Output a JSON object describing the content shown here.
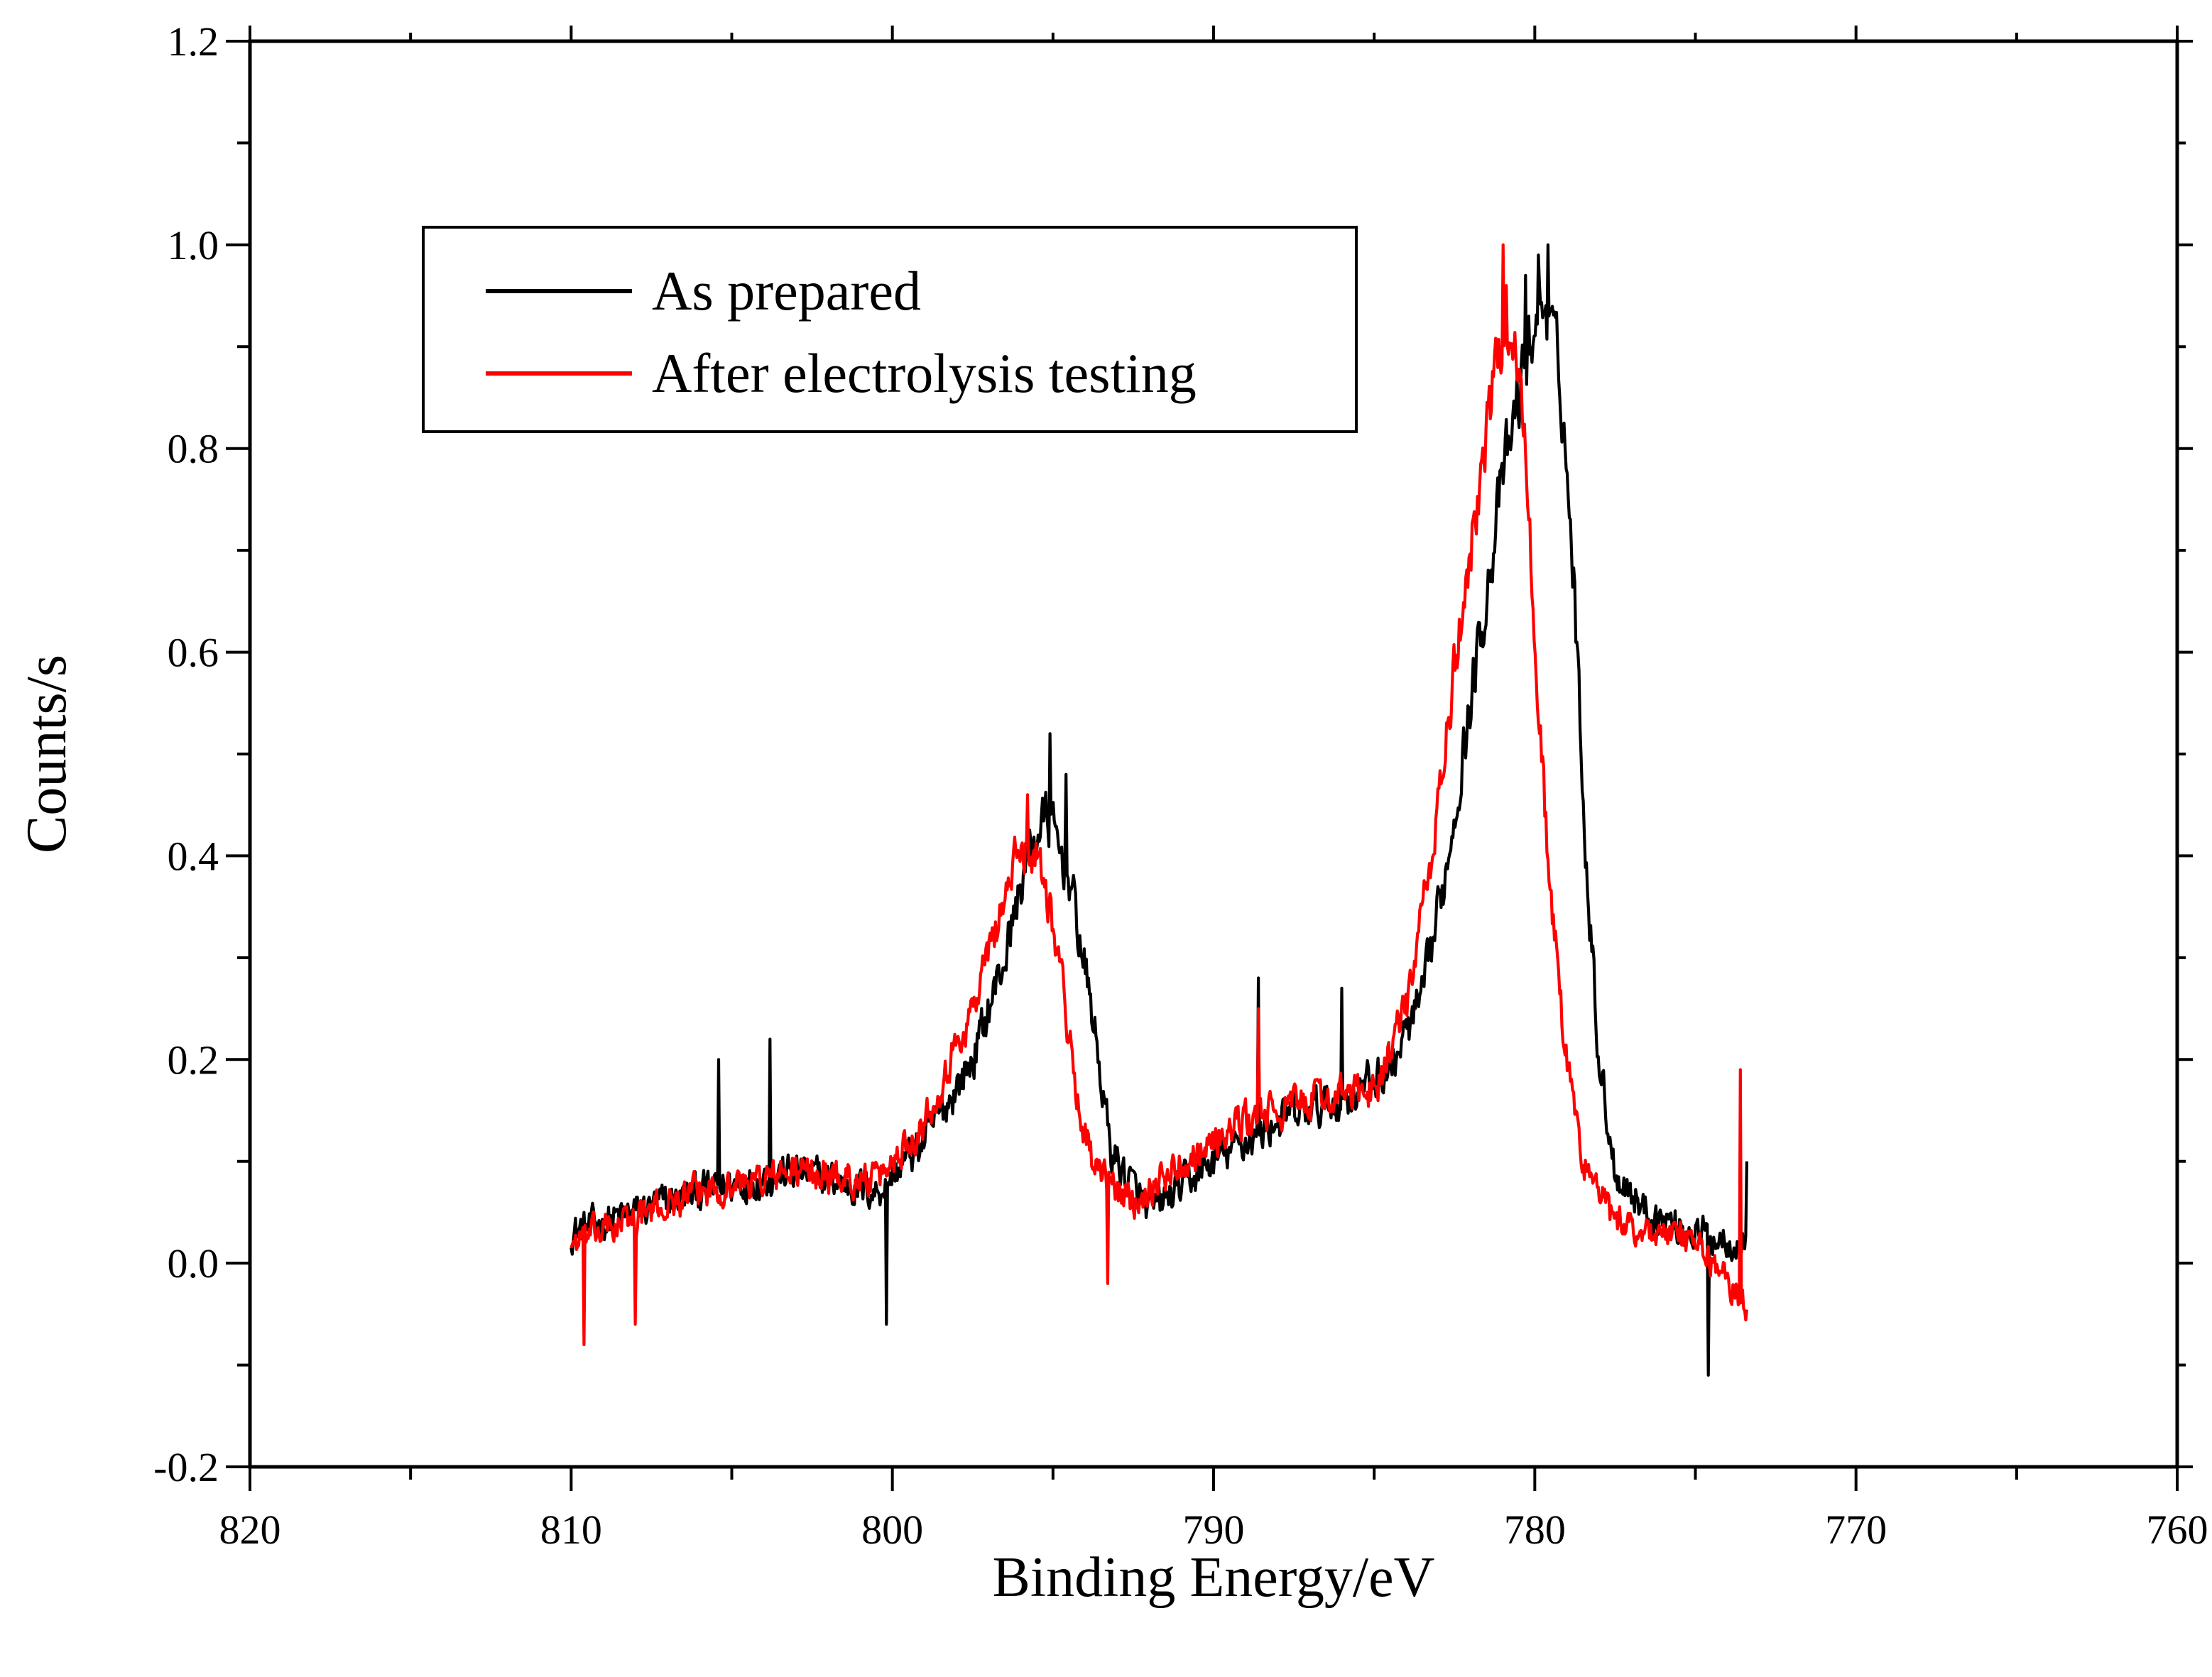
{
  "chart_data": {
    "type": "line",
    "title": "",
    "xlabel": "Binding Energy/eV",
    "ylabel": "Counts/s",
    "xlim": [
      820,
      760
    ],
    "ylim": [
      -0.2,
      1.2
    ],
    "x_reversed": true,
    "x_ticks": [
      820,
      810,
      800,
      790,
      780,
      770,
      760
    ],
    "y_ticks": [
      -0.2,
      0.0,
      0.2,
      0.4,
      0.6,
      0.8,
      1.0,
      1.2
    ],
    "x_tick_labels": [
      "820",
      "810",
      "800",
      "790",
      "780",
      "770",
      "760"
    ],
    "y_tick_labels": [
      "-0.2",
      "0.0",
      "0.2",
      "0.4",
      "0.6",
      "0.8",
      "1.0",
      "1.2"
    ],
    "grid": false,
    "legend_position": "top-left",
    "x_range_data": [
      810,
      773.4
    ],
    "series": [
      {
        "name": "As prepared",
        "color": "#000000",
        "noise_amplitude": 0.045,
        "baseline": [
          [
            810,
            0.03
          ],
          [
            806,
            0.07
          ],
          [
            803,
            0.09
          ],
          [
            800.5,
            0.07
          ],
          [
            799,
            0.12
          ],
          [
            797.5,
            0.2
          ],
          [
            796.5,
            0.3
          ],
          [
            795.8,
            0.4
          ],
          [
            795.2,
            0.44
          ],
          [
            794.5,
            0.38
          ],
          [
            793.8,
            0.25
          ],
          [
            793.2,
            0.11
          ],
          [
            792,
            0.05
          ],
          [
            790,
            0.1
          ],
          [
            788,
            0.14
          ],
          [
            786,
            0.16
          ],
          [
            784.5,
            0.19
          ],
          [
            783.5,
            0.26
          ],
          [
            782.8,
            0.38
          ],
          [
            782,
            0.55
          ],
          [
            781,
            0.77
          ],
          [
            780.2,
            0.9
          ],
          [
            779.7,
            0.95
          ],
          [
            779.2,
            0.87
          ],
          [
            778.8,
            0.68
          ],
          [
            778.4,
            0.4
          ],
          [
            778,
            0.2
          ],
          [
            777.5,
            0.09
          ],
          [
            776.5,
            0.05
          ],
          [
            775,
            0.03
          ],
          [
            773.4,
            0.02
          ]
        ],
        "spikes": [
          [
            795.1,
            0.52
          ],
          [
            794.6,
            0.48
          ],
          [
            779.6,
            1.0
          ],
          [
            779.9,
            0.99
          ],
          [
            780.3,
            0.97
          ],
          [
            800.2,
            -0.06
          ],
          [
            774.6,
            -0.11
          ],
          [
            788.6,
            0.28
          ],
          [
            786,
            0.27
          ],
          [
            805.4,
            0.2
          ],
          [
            803.8,
            0.22
          ],
          [
            773.4,
            0.1
          ]
        ]
      },
      {
        "name": "After electrolysis testing",
        "color": "#ff0000",
        "noise_amplitude": 0.04,
        "baseline": [
          [
            810,
            0.02
          ],
          [
            806,
            0.07
          ],
          [
            803,
            0.09
          ],
          [
            800.5,
            0.08
          ],
          [
            799,
            0.14
          ],
          [
            797.5,
            0.25
          ],
          [
            796.5,
            0.36
          ],
          [
            796,
            0.41
          ],
          [
            795.4,
            0.4
          ],
          [
            794.8,
            0.3
          ],
          [
            794.3,
            0.17
          ],
          [
            793.7,
            0.09
          ],
          [
            792.5,
            0.06
          ],
          [
            791,
            0.1
          ],
          [
            789,
            0.14
          ],
          [
            787,
            0.16
          ],
          [
            785,
            0.17
          ],
          [
            784,
            0.25
          ],
          [
            783.2,
            0.4
          ],
          [
            782.5,
            0.58
          ],
          [
            781.8,
            0.75
          ],
          [
            781.2,
            0.88
          ],
          [
            780.8,
            0.93
          ],
          [
            780.4,
            0.85
          ],
          [
            780,
            0.62
          ],
          [
            779.6,
            0.4
          ],
          [
            779.1,
            0.22
          ],
          [
            778.5,
            0.1
          ],
          [
            777.5,
            0.04
          ],
          [
            775,
            0.02
          ],
          [
            773.4,
            -0.04
          ]
        ],
        "spikes": [
          [
            781,
            1.0
          ],
          [
            780.9,
            0.96
          ],
          [
            795.8,
            0.46
          ],
          [
            773.6,
            0.19
          ],
          [
            809.6,
            -0.08
          ],
          [
            808,
            -0.06
          ],
          [
            793.3,
            -0.02
          ],
          [
            788.6,
            0.25
          ]
        ]
      }
    ]
  }
}
